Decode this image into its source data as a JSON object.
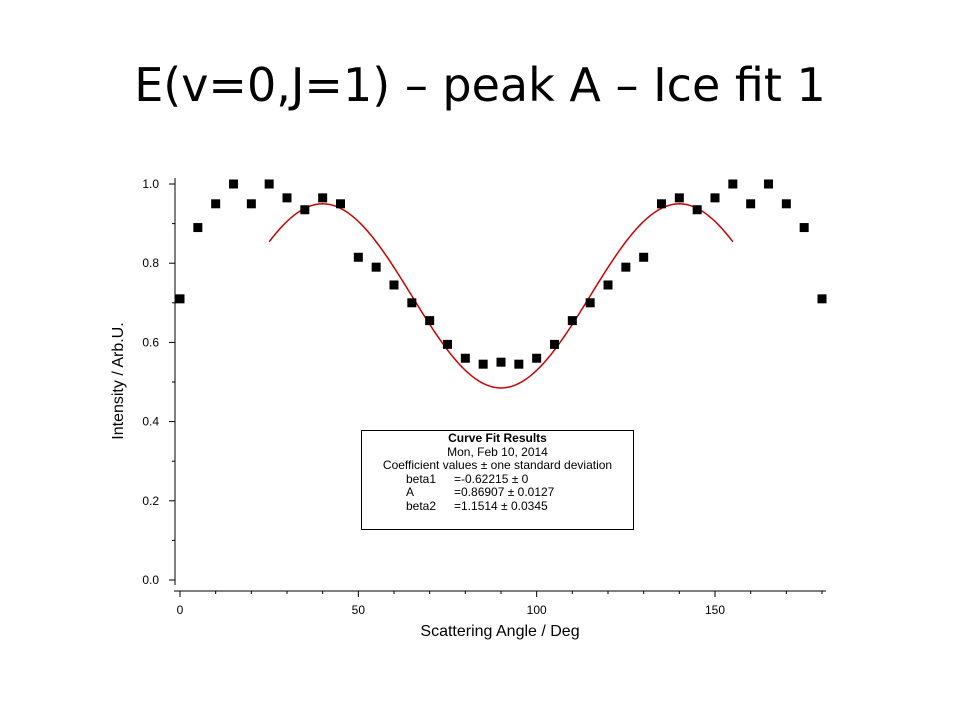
{
  "slide": {
    "title": "E(v=0,J=1) – peak A – Ice fit 1"
  },
  "chart_data": {
    "type": "scatter",
    "xlabel": "Scattering Angle / Deg",
    "ylabel": "Intensity / Arb.U.",
    "xlim": [
      0,
      180
    ],
    "ylim": [
      0,
      1.0
    ],
    "x_ticks": [
      "0",
      "50",
      "100",
      "150"
    ],
    "y_ticks": [
      "0.0",
      "0.2",
      "0.4",
      "0.6",
      "0.8",
      "1.0"
    ],
    "grid": false,
    "series": [
      {
        "marker": "square",
        "color": "#000000",
        "x": [
          0,
          5,
          10,
          15,
          20,
          25,
          30,
          35,
          40,
          45,
          50,
          55,
          60,
          65,
          70,
          75,
          80,
          85,
          90,
          95,
          100,
          105,
          110,
          115,
          120,
          125,
          130,
          135,
          140,
          145,
          150,
          155,
          160,
          165,
          170,
          175,
          180
        ],
        "y": [
          0.71,
          0.89,
          0.95,
          1.0,
          0.95,
          1.0,
          0.965,
          0.935,
          0.965,
          0.95,
          0.815,
          0.79,
          0.745,
          0.7,
          0.655,
          0.595,
          0.56,
          0.545,
          0.55,
          0.545,
          0.56,
          0.595,
          0.655,
          0.7,
          0.745,
          0.79,
          0.815,
          0.95,
          0.965,
          0.935,
          0.965,
          1.0,
          0.95,
          1.0,
          0.95,
          0.89,
          0.71
        ]
      },
      {
        "type": "line",
        "color": "#cc0000",
        "x_range": [
          25,
          155
        ],
        "model": "fit"
      }
    ],
    "fit_results": {
      "title": "Curve Fit Results",
      "date": "Mon, Feb 10, 2014",
      "subtitle": "Coefficient values ± one standard deviation",
      "coefficients": [
        {
          "name": "beta1",
          "value": "=-0.62215 ± 0"
        },
        {
          "name": "A",
          "value": "=0.86907 ± 0.0127"
        },
        {
          "name": "beta2",
          "value": "=1.1514 ± 0.0345"
        }
      ]
    }
  }
}
